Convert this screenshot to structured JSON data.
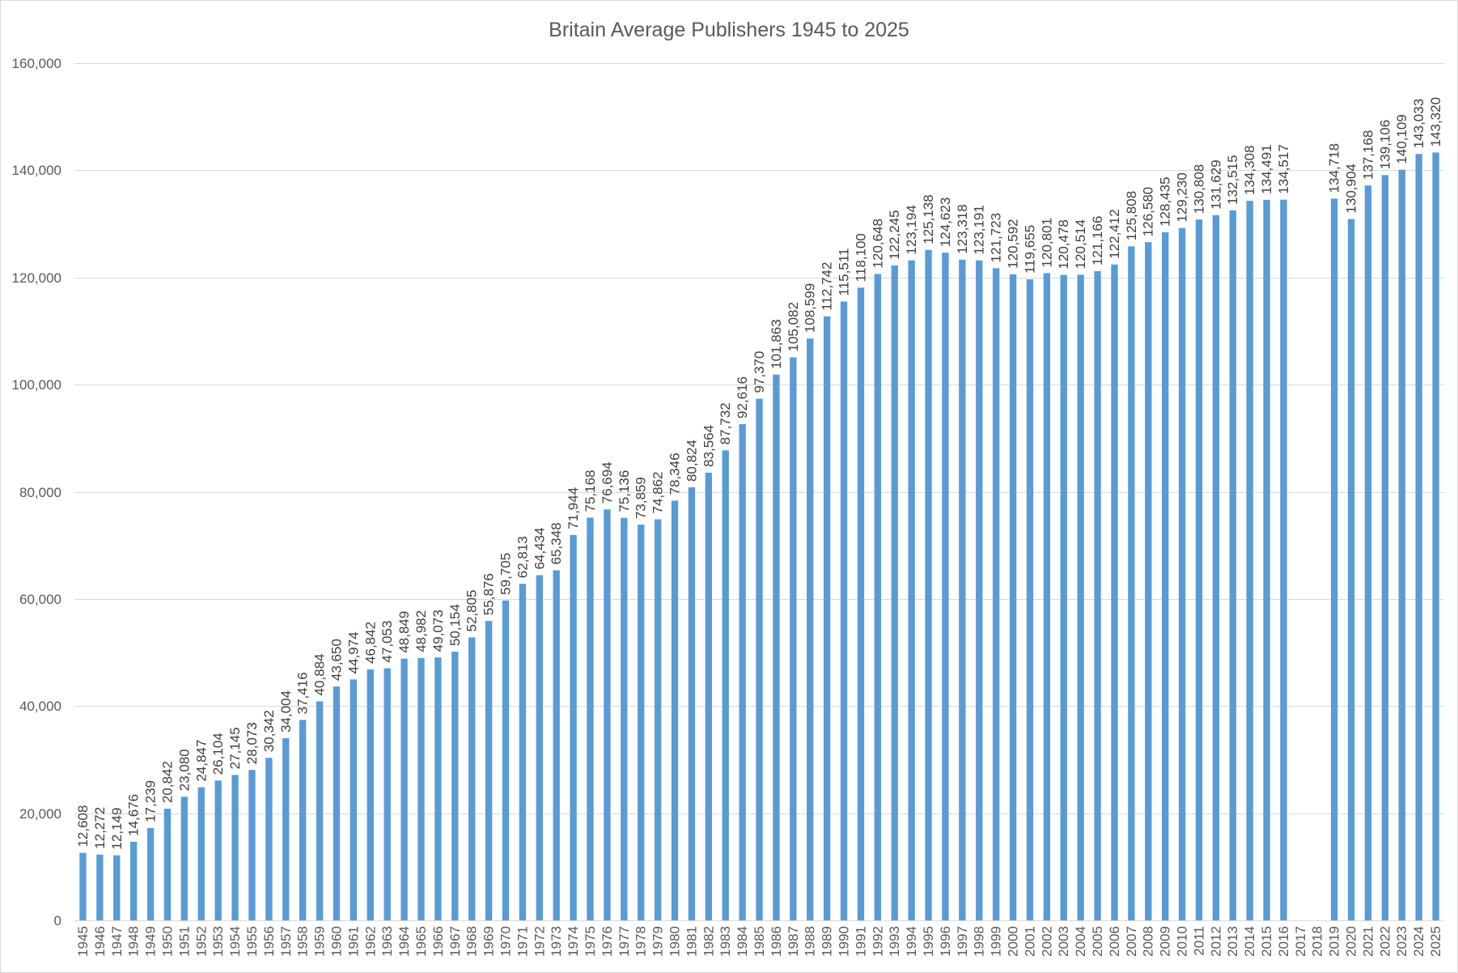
{
  "chart_data": {
    "type": "bar",
    "title": "Britain Average Publishers 1945 to 2025",
    "categories": [
      "1945",
      "1946",
      "1947",
      "1948",
      "1949",
      "1950",
      "1951",
      "1952",
      "1953",
      "1954",
      "1955",
      "1956",
      "1957",
      "1958",
      "1959",
      "1960",
      "1961",
      "1962",
      "1963",
      "1964",
      "1965",
      "1966",
      "1967",
      "1968",
      "1969",
      "1970",
      "1971",
      "1972",
      "1973",
      "1974",
      "1975",
      "1976",
      "1977",
      "1978",
      "1979",
      "1980",
      "1981",
      "1982",
      "1983",
      "1984",
      "1985",
      "1986",
      "1987",
      "1988",
      "1989",
      "1990",
      "1991",
      "1992",
      "1993",
      "1994",
      "1995",
      "1996",
      "1997",
      "1998",
      "1999",
      "2000",
      "2001",
      "2002",
      "2003",
      "2004",
      "2005",
      "2006",
      "2007",
      "2008",
      "2009",
      "2010",
      "2011",
      "2012",
      "2013",
      "2014",
      "2015",
      "2016",
      "2017",
      "2018",
      "2019",
      "2020",
      "2021",
      "2022",
      "2023",
      "2024",
      "2025"
    ],
    "values": [
      12608,
      12272,
      12149,
      14676,
      17239,
      20842,
      23080,
      24847,
      26104,
      27145,
      28073,
      30342,
      34004,
      37416,
      40884,
      43650,
      44974,
      46842,
      47053,
      48849,
      48982,
      49073,
      50154,
      52805,
      55876,
      59705,
      62813,
      64434,
      65348,
      71944,
      75168,
      76694,
      75136,
      73859,
      74862,
      78346,
      80824,
      83564,
      87732,
      92616,
      97370,
      101863,
      105082,
      108599,
      112742,
      115511,
      118100,
      120648,
      122245,
      123194,
      125138,
      124623,
      123318,
      123191,
      121723,
      120592,
      119655,
      120801,
      120478,
      120514,
      121166,
      122412,
      125808,
      126580,
      128435,
      129230,
      130808,
      131629,
      132515,
      134308,
      134491,
      134517,
      null,
      null,
      134718,
      130904,
      137168,
      139106,
      140109,
      143033,
      143320
    ],
    "ylim": [
      0,
      160000
    ],
    "yticks": [
      0,
      20000,
      40000,
      60000,
      80000,
      100000,
      120000,
      140000,
      160000
    ],
    "grid": true,
    "show_data_labels": true,
    "bar_color": "#5B9BD5"
  }
}
